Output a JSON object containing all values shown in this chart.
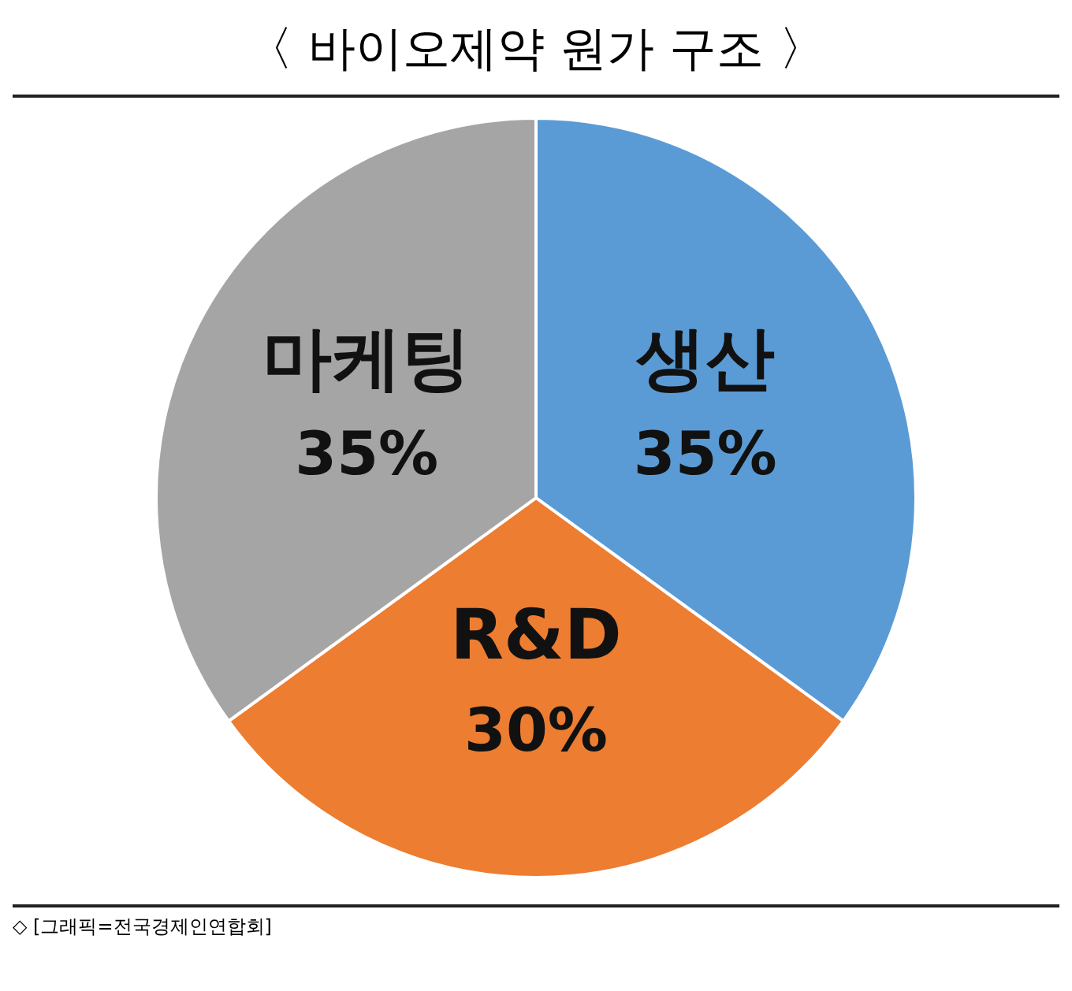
{
  "chart_data": {
    "type": "pie",
    "title": "〈 바이오제약 원가 구조 〉",
    "categories": [
      "생산",
      "R&D",
      "마케팅"
    ],
    "values": [
      35,
      30,
      35
    ],
    "colors": [
      "#5b9bd5",
      "#ed7d31",
      "#a5a5a5"
    ],
    "value_labels": [
      "35%",
      "30%",
      "35%"
    ],
    "legend": false,
    "annotations": [
      "◇ [그래픽=전국경제인연합회]"
    ]
  }
}
